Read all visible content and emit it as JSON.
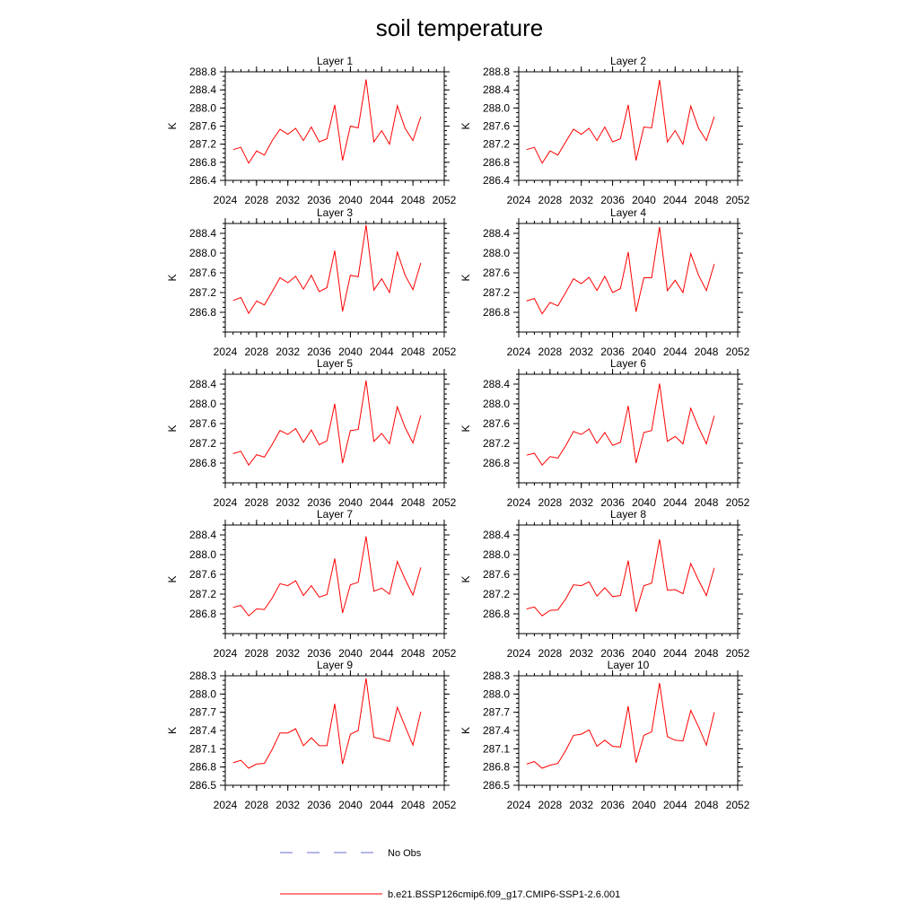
{
  "title": "soil temperature",
  "chart_data": {
    "type": "line",
    "title": "soil temperature",
    "x_ticks": [
      "2024",
      "2028",
      "2032",
      "2036",
      "2040",
      "2044",
      "2048",
      "2052"
    ],
    "xlim": [
      2024,
      2052
    ],
    "ylabel": "K",
    "series_meta": [
      {
        "name": "No Obs",
        "color": "#6a6ad0",
        "style": "dashed"
      },
      {
        "name": "b.e21.BSSP126cmip6.f09_g17.CMIP6-SSP1-2.6.001",
        "color": "#ff0000",
        "style": "solid"
      }
    ],
    "x": [
      2025,
      2026,
      2027,
      2028,
      2029,
      2030,
      2031,
      2032,
      2033,
      2034,
      2035,
      2036,
      2037,
      2038,
      2039,
      2040,
      2041,
      2042,
      2043,
      2044,
      2045,
      2046,
      2047,
      2048,
      2049
    ],
    "panels": [
      {
        "name": "Layer 1",
        "ylabel": "K",
        "ylim": [
          286.4,
          288.8
        ],
        "y_ticks": [
          "286.4",
          "286.8",
          "287.2",
          "287.6",
          "288.0",
          "288.4",
          "288.8"
        ],
        "values": [
          287.08,
          287.13,
          286.78,
          287.05,
          286.96,
          287.28,
          287.53,
          287.42,
          287.55,
          287.28,
          287.58,
          287.25,
          287.32,
          288.07,
          286.84,
          287.6,
          287.56,
          288.63,
          287.25,
          287.5,
          287.2,
          288.05,
          287.55,
          287.28,
          287.81
        ]
      },
      {
        "name": "Layer 2",
        "ylabel": "K",
        "ylim": [
          286.4,
          288.8
        ],
        "y_ticks": [
          "286.4",
          "286.8",
          "287.2",
          "287.6",
          "288.0",
          "288.4",
          "288.8"
        ],
        "values": [
          287.08,
          287.13,
          286.78,
          287.05,
          286.96,
          287.25,
          287.53,
          287.42,
          287.55,
          287.28,
          287.58,
          287.25,
          287.32,
          288.07,
          286.84,
          287.58,
          287.56,
          288.62,
          287.25,
          287.5,
          287.2,
          288.04,
          287.55,
          287.28,
          287.81
        ]
      },
      {
        "name": "Layer 3",
        "ylabel": "K",
        "ylim": [
          286.4,
          288.6
        ],
        "y_ticks": [
          "286.8",
          "287.2",
          "287.6",
          "288.0",
          "288.4"
        ],
        "values": [
          287.04,
          287.1,
          286.78,
          287.03,
          286.95,
          287.22,
          287.5,
          287.4,
          287.53,
          287.27,
          287.55,
          287.22,
          287.3,
          288.05,
          286.82,
          287.55,
          287.52,
          288.57,
          287.25,
          287.48,
          287.2,
          288.02,
          287.55,
          287.26,
          287.8
        ]
      },
      {
        "name": "Layer 4",
        "ylabel": "K",
        "ylim": [
          286.4,
          288.6
        ],
        "y_ticks": [
          "286.8",
          "287.2",
          "287.6",
          "288.0",
          "288.4"
        ],
        "values": [
          287.03,
          287.08,
          286.77,
          287.0,
          286.93,
          287.2,
          287.48,
          287.38,
          287.51,
          287.24,
          287.53,
          287.2,
          287.28,
          288.02,
          286.81,
          287.5,
          287.5,
          288.53,
          287.24,
          287.45,
          287.2,
          287.99,
          287.55,
          287.24,
          287.78
        ]
      },
      {
        "name": "Layer 5",
        "ylabel": "K",
        "ylim": [
          286.4,
          288.6
        ],
        "y_ticks": [
          "286.8",
          "287.2",
          "287.6",
          "288.0",
          "288.4"
        ],
        "values": [
          286.99,
          287.04,
          286.76,
          286.97,
          286.92,
          287.18,
          287.46,
          287.38,
          287.5,
          287.22,
          287.47,
          287.17,
          287.25,
          288.0,
          286.8,
          287.46,
          287.48,
          288.47,
          287.24,
          287.4,
          287.19,
          287.94,
          287.52,
          287.21,
          287.77
        ]
      },
      {
        "name": "Layer 6",
        "ylabel": "K",
        "ylim": [
          286.4,
          288.6
        ],
        "y_ticks": [
          "286.8",
          "287.2",
          "287.6",
          "288.0",
          "288.4"
        ],
        "values": [
          286.96,
          287.0,
          286.76,
          286.93,
          286.9,
          287.15,
          287.44,
          287.38,
          287.49,
          287.2,
          287.42,
          287.16,
          287.22,
          287.96,
          286.8,
          287.42,
          287.46,
          288.41,
          287.24,
          287.34,
          287.19,
          287.91,
          287.52,
          287.19,
          287.76
        ]
      },
      {
        "name": "Layer 7",
        "ylabel": "K",
        "ylim": [
          286.4,
          288.6
        ],
        "y_ticks": [
          "286.8",
          "287.2",
          "287.6",
          "288.0",
          "288.4"
        ],
        "values": [
          286.93,
          286.97,
          286.76,
          286.9,
          286.89,
          287.12,
          287.41,
          287.37,
          287.47,
          287.17,
          287.37,
          287.14,
          287.19,
          287.92,
          286.82,
          287.39,
          287.44,
          288.37,
          287.26,
          287.32,
          287.2,
          287.86,
          287.5,
          287.18,
          287.74
        ]
      },
      {
        "name": "Layer 8",
        "ylabel": "K",
        "ylim": [
          286.4,
          288.6
        ],
        "y_ticks": [
          "286.8",
          "287.2",
          "287.6",
          "288.0",
          "288.4"
        ],
        "values": [
          286.9,
          286.94,
          286.76,
          286.87,
          286.88,
          287.1,
          287.39,
          287.37,
          287.45,
          287.16,
          287.33,
          287.15,
          287.17,
          287.88,
          286.84,
          287.37,
          287.42,
          288.31,
          287.28,
          287.29,
          287.21,
          287.82,
          287.48,
          287.17,
          287.73
        ]
      },
      {
        "name": "Layer 9",
        "ylabel": "K",
        "ylim": [
          286.5,
          288.3
        ],
        "y_ticks": [
          "286.5",
          "286.8",
          "287.1",
          "287.4",
          "287.7",
          "288.0",
          "288.3"
        ],
        "values": [
          286.87,
          286.91,
          286.78,
          286.85,
          286.86,
          287.09,
          287.36,
          287.36,
          287.43,
          287.15,
          287.28,
          287.15,
          287.15,
          287.84,
          286.85,
          287.34,
          287.4,
          288.26,
          287.29,
          287.26,
          287.22,
          287.78,
          287.47,
          287.16,
          287.71
        ]
      },
      {
        "name": "Layer 10",
        "ylabel": "K",
        "ylim": [
          286.5,
          288.3
        ],
        "y_ticks": [
          "286.5",
          "286.8",
          "287.1",
          "287.4",
          "287.7",
          "288.0",
          "288.3"
        ],
        "values": [
          286.85,
          286.89,
          286.78,
          286.83,
          286.86,
          287.07,
          287.32,
          287.34,
          287.41,
          287.14,
          287.24,
          287.14,
          287.13,
          287.8,
          286.87,
          287.32,
          287.38,
          288.18,
          287.3,
          287.24,
          287.23,
          287.73,
          287.46,
          287.16,
          287.7
        ]
      }
    ]
  },
  "legend": {
    "obs_label": "No Obs",
    "model_label": "b.e21.BSSP126cmip6.f09_g17.CMIP6-SSP1-2.6.001"
  }
}
